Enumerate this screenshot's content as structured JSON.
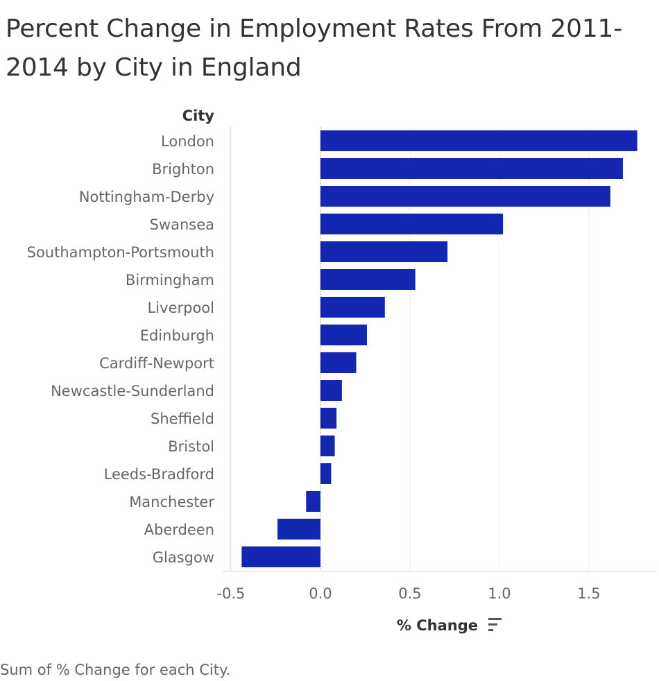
{
  "chart_data": {
    "type": "bar",
    "orientation": "horizontal",
    "title": "Percent Change in Employment Rates From 2011-2014 by City in England",
    "ylabel": "City",
    "xlabel": "% Change",
    "footer": "Sum of % Change for each City.",
    "sort_icon": "sort-descending-icon",
    "bar_color": "#1427b0",
    "xlim": [
      -0.55,
      1.88
    ],
    "ticks": [
      -0.5,
      0.0,
      0.5,
      1.0,
      1.5
    ],
    "tick_labels": [
      "-0.5",
      "0.0",
      "0.5",
      "1.0",
      "1.5"
    ],
    "grid": true,
    "categories": [
      "London",
      "Brighton",
      "Nottingham-Derby",
      "Swansea",
      "Southampton-Portsmouth",
      "Birmingham",
      "Liverpool",
      "Edinburgh",
      "Cardiff-Newport",
      "Newcastle-Sunderland",
      "Sheffield",
      "Bristol",
      "Leeds-Bradford",
      "Manchester",
      "Aberdeen",
      "Glasgow"
    ],
    "values": [
      1.77,
      1.69,
      1.62,
      1.02,
      0.71,
      0.53,
      0.36,
      0.26,
      0.2,
      0.12,
      0.09,
      0.08,
      0.06,
      -0.08,
      -0.24,
      -0.44
    ]
  }
}
